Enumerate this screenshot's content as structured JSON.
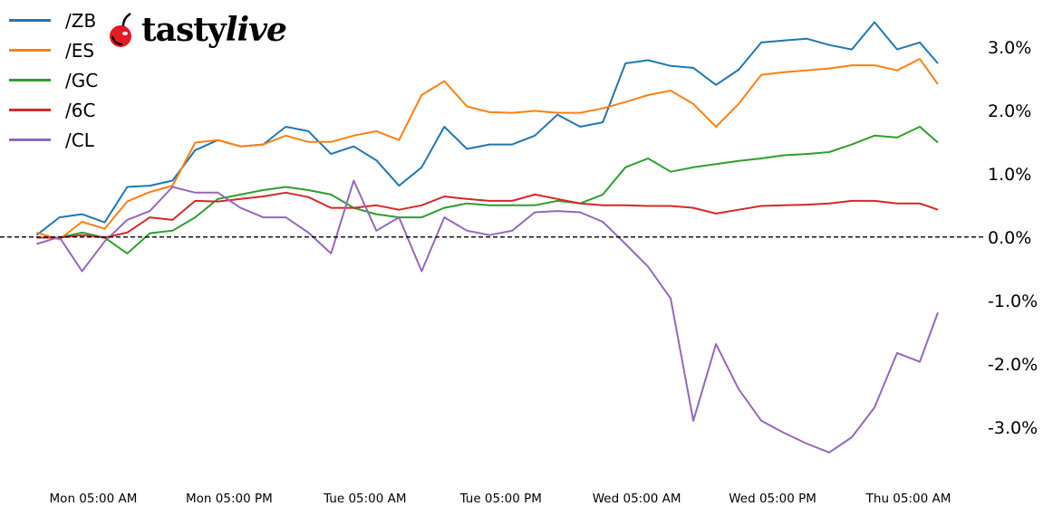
{
  "chart_data": {
    "type": "line",
    "title": "",
    "xlabel": "",
    "ylabel": "",
    "x_ticks": [
      "Mon 05:00 AM",
      "Mon 05:00 PM",
      "Tue 05:00 AM",
      "Tue 05:00 PM",
      "Wed 05:00 AM",
      "Wed 05:00 PM",
      "Thu 05:00 AM"
    ],
    "x_tick_times": [
      "Mon 05:00",
      "Mon 17:00",
      "Tue 05:00",
      "Tue 17:00",
      "Wed 05:00",
      "Wed 17:00",
      "Thu 05:00"
    ],
    "y_ticks": [
      3.0,
      2.0,
      1.0,
      0.0,
      -1.0,
      -2.0,
      -3.0
    ],
    "y_tick_labels": [
      "3.0%",
      "2.0%",
      "1.0%",
      "0.0%",
      "-1.0%",
      "-2.0%",
      "-3.0%"
    ],
    "y_unit": "%",
    "xlim": [
      "Mon 00:00",
      "Thu 07:36"
    ],
    "ylim": [
      -3.86,
      3.74
    ],
    "grid": false,
    "zero_line": "dashed black",
    "legend_placement": "top-left",
    "x": [
      "Mon 00:00",
      "Mon 02:00",
      "Mon 04:00",
      "Mon 06:00",
      "Mon 08:00",
      "Mon 10:00",
      "Mon 12:00",
      "Mon 14:00",
      "Mon 16:00",
      "Mon 18:00",
      "Mon 20:00",
      "Mon 22:00",
      "Tue 00:00",
      "Tue 02:00",
      "Tue 04:00",
      "Tue 06:00",
      "Tue 08:00",
      "Tue 10:00",
      "Tue 12:00",
      "Tue 14:00",
      "Tue 16:00",
      "Tue 18:00",
      "Tue 20:00",
      "Tue 22:00",
      "Wed 00:00",
      "Wed 02:00",
      "Wed 04:00",
      "Wed 06:00",
      "Wed 08:00",
      "Wed 10:00",
      "Wed 12:00",
      "Wed 14:00",
      "Wed 16:00",
      "Wed 18:00",
      "Wed 20:00",
      "Wed 22:00",
      "Thu 00:00",
      "Thu 02:00",
      "Thu 04:00",
      "Thu 06:00",
      "Thu 07:36"
    ],
    "series": [
      {
        "name": "/ZB",
        "color": "#1f77b4",
        "values": [
          0.03,
          0.31,
          0.36,
          0.23,
          0.79,
          0.81,
          0.89,
          1.37,
          1.53,
          1.43,
          1.46,
          1.74,
          1.67,
          1.31,
          1.43,
          1.21,
          0.81,
          1.1,
          1.74,
          1.39,
          1.46,
          1.46,
          1.6,
          1.93,
          1.74,
          1.81,
          2.74,
          2.79,
          2.7,
          2.67,
          2.4,
          2.64,
          3.07,
          3.1,
          3.13,
          3.03,
          2.96,
          3.39,
          2.96,
          3.07,
          2.74
        ]
      },
      {
        "name": "/ES",
        "color": "#ff7f0e",
        "values": [
          0.07,
          -0.04,
          0.24,
          0.13,
          0.56,
          0.71,
          0.81,
          1.49,
          1.53,
          1.43,
          1.46,
          1.6,
          1.5,
          1.5,
          1.6,
          1.67,
          1.53,
          2.24,
          2.46,
          2.06,
          1.97,
          1.96,
          1.99,
          1.96,
          1.96,
          2.03,
          2.13,
          2.24,
          2.31,
          2.1,
          1.74,
          2.1,
          2.56,
          2.6,
          2.63,
          2.66,
          2.71,
          2.71,
          2.63,
          2.81,
          2.41
        ]
      },
      {
        "name": "/GC",
        "color": "#2ca02c",
        "values": [
          -0.01,
          -0.01,
          0.07,
          -0.01,
          -0.26,
          0.06,
          0.1,
          0.31,
          0.6,
          0.67,
          0.74,
          0.79,
          0.74,
          0.67,
          0.46,
          0.36,
          0.31,
          0.31,
          0.46,
          0.53,
          0.5,
          0.5,
          0.5,
          0.57,
          0.53,
          0.67,
          1.1,
          1.24,
          1.03,
          1.1,
          1.15,
          1.2,
          1.24,
          1.29,
          1.31,
          1.34,
          1.46,
          1.6,
          1.57,
          1.74,
          1.49
        ]
      },
      {
        "name": "/6C",
        "color": "#d62728",
        "values": [
          -0.01,
          -0.01,
          0.03,
          -0.01,
          0.07,
          0.31,
          0.27,
          0.57,
          0.56,
          0.6,
          0.64,
          0.7,
          0.63,
          0.46,
          0.46,
          0.5,
          0.43,
          0.5,
          0.64,
          0.6,
          0.57,
          0.57,
          0.67,
          0.6,
          0.53,
          0.5,
          0.5,
          0.49,
          0.49,
          0.46,
          0.37,
          0.43,
          0.49,
          0.5,
          0.51,
          0.53,
          0.57,
          0.57,
          0.53,
          0.53,
          0.43
        ]
      },
      {
        "name": "/CL",
        "color": "#9467bd",
        "values": [
          -0.11,
          0.0,
          -0.54,
          -0.07,
          0.27,
          0.41,
          0.79,
          0.7,
          0.7,
          0.46,
          0.31,
          0.31,
          0.07,
          -0.26,
          0.89,
          0.1,
          0.31,
          -0.54,
          0.31,
          0.1,
          0.03,
          0.1,
          0.39,
          0.41,
          0.39,
          0.24,
          -0.11,
          -0.47,
          -0.97,
          -2.9,
          -1.69,
          -2.4,
          -2.9,
          -3.09,
          -3.26,
          -3.4,
          -3.16,
          -2.69,
          -1.83,
          -1.97,
          -1.19
        ]
      }
    ]
  },
  "logo": {
    "text_upright": "tasty",
    "text_italic": "live",
    "brand_color": "#e31b23"
  }
}
